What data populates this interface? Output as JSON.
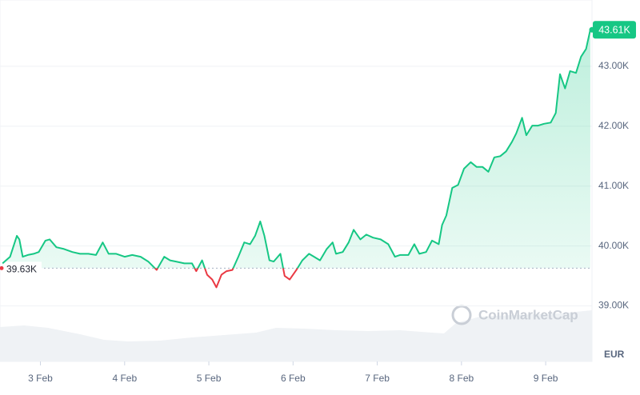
{
  "chart_data": {
    "type": "line",
    "x": [
      -0.45,
      -0.36,
      -0.28,
      -0.25,
      -0.21,
      -0.15,
      -0.08,
      -0.02,
      0.06,
      0.11,
      0.19,
      0.28,
      0.38,
      0.47,
      0.57,
      0.66,
      0.74,
      0.81,
      0.9,
      1.0,
      1.09,
      1.19,
      1.28,
      1.38,
      1.47,
      1.54,
      1.61,
      1.71,
      1.8,
      1.85,
      1.92,
      1.98,
      2.04,
      2.09,
      2.15,
      2.21,
      2.28,
      2.35,
      2.42,
      2.49,
      2.55,
      2.61,
      2.66,
      2.72,
      2.77,
      2.85,
      2.9,
      2.96,
      3.04,
      3.11,
      3.19,
      3.25,
      3.32,
      3.4,
      3.47,
      3.51,
      3.59,
      3.66,
      3.72,
      3.8,
      3.87,
      3.95,
      4.04,
      4.13,
      4.21,
      4.27,
      4.37,
      4.44,
      4.5,
      4.58,
      4.65,
      4.73,
      4.77,
      4.82,
      4.89,
      4.96,
      5.03,
      5.11,
      5.18,
      5.25,
      5.32,
      5.39,
      5.46,
      5.53,
      5.6,
      5.65,
      5.72,
      5.77,
      5.84,
      5.91,
      5.98,
      6.06,
      6.12,
      6.17,
      6.23,
      6.29,
      6.36,
      6.42,
      6.48,
      6.53
    ],
    "values": [
      39710,
      39820,
      40170,
      40110,
      39820,
      39850,
      39870,
      39900,
      40090,
      40110,
      39980,
      39950,
      39900,
      39870,
      39870,
      39850,
      40060,
      39870,
      39870,
      39820,
      39850,
      39820,
      39740,
      39600,
      39820,
      39760,
      39740,
      39710,
      39710,
      39580,
      39760,
      39520,
      39440,
      39310,
      39520,
      39580,
      39600,
      39820,
      40060,
      40030,
      40170,
      40410,
      40170,
      39760,
      39740,
      39870,
      39500,
      39440,
      39600,
      39760,
      39870,
      39820,
      39760,
      39950,
      40060,
      39870,
      39900,
      40060,
      40270,
      40110,
      40190,
      40140,
      40110,
      40030,
      39820,
      39850,
      39850,
      40030,
      39870,
      39900,
      40090,
      40030,
      40350,
      40510,
      40970,
      41020,
      41290,
      41400,
      41320,
      41320,
      41240,
      41480,
      41500,
      41580,
      41740,
      41880,
      42140,
      41850,
      42010,
      42010,
      42040,
      42060,
      42220,
      42870,
      42630,
      42920,
      42890,
      43160,
      43290,
      43610
    ],
    "color": "#16c784",
    "below_color": "#ea3943",
    "xlim": [
      -0.48,
      6.55
    ],
    "xticks": [
      {
        "value": 0,
        "label": "3 Feb"
      },
      {
        "value": 1,
        "label": "4 Feb"
      },
      {
        "value": 2,
        "label": "5 Feb"
      },
      {
        "value": 3,
        "label": "6 Feb"
      },
      {
        "value": 4,
        "label": "7 Feb"
      },
      {
        "value": 5,
        "label": "8 Feb"
      },
      {
        "value": 6,
        "label": "9 Feb"
      }
    ],
    "ylim": [
      38100,
      44000
    ],
    "yticks": [
      {
        "value": 39000,
        "label": "39.00K"
      },
      {
        "value": 40000,
        "label": "40.00K"
      },
      {
        "value": 41000,
        "label": "41.00K"
      },
      {
        "value": 42000,
        "label": "42.00K"
      },
      {
        "value": 43000,
        "label": "43.00K"
      }
    ],
    "reference_line": {
      "value": 39630,
      "label": "39.63K"
    },
    "last_price": {
      "value": 43610,
      "label": "43.61K"
    },
    "currency": "EUR",
    "watermark": "CoinMarketCap",
    "grid": true
  }
}
